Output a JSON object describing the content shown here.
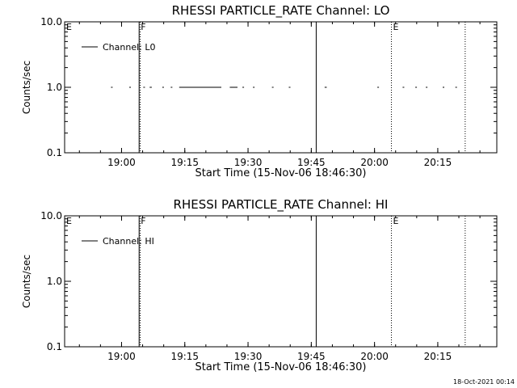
{
  "footer": {
    "timestamp": "18-Oct-2021 00:14"
  },
  "chart_data": [
    {
      "type": "line",
      "title": "RHESSI PARTICLE_RATE Channel: LO",
      "xlabel": "Start Time (15-Nov-06 18:46:30)",
      "ylabel": "Counts/sec",
      "y_scale": "log",
      "ylim": [
        0.1,
        10.0
      ],
      "yticks": [
        {
          "value": 0.1,
          "label": "0.1"
        },
        {
          "value": 1.0,
          "label": "1.0"
        },
        {
          "value": 10.0,
          "label": "10.0"
        }
      ],
      "xlim": [
        "18:46:30",
        "20:29:00"
      ],
      "xticks": [
        "19:00",
        "19:15",
        "19:30",
        "19:45",
        "20:00",
        "20:15"
      ],
      "grid": false,
      "legend": {
        "position": "top-left",
        "entries": [
          "Channel: L0"
        ]
      },
      "events": [
        {
          "time": "18:46:30",
          "label": "E",
          "style": "dotted"
        },
        {
          "time": "19:04:10",
          "label": "F",
          "style": "solid"
        },
        {
          "time": "19:04:25",
          "label": "",
          "style": "dotted"
        },
        {
          "time": "19:46:10",
          "label": "",
          "style": "solid"
        },
        {
          "time": "20:04:00",
          "label": "E",
          "style": "dotted"
        },
        {
          "time": "20:21:30",
          "label": "",
          "style": "dotted"
        }
      ],
      "series": [
        {
          "name": "Channel: L0",
          "segments": [
            [
              "18:57:30",
              "18:57:45"
            ],
            [
              "19:01:50",
              "19:02:05"
            ],
            [
              "19:05:10",
              "19:05:25"
            ],
            [
              "19:06:40",
              "19:07:10"
            ],
            [
              "19:09:40",
              "19:09:55"
            ],
            [
              "19:11:40",
              "19:11:55"
            ],
            [
              "19:13:40",
              "19:23:40"
            ],
            [
              "19:25:40",
              "19:27:30"
            ],
            [
              "19:28:40",
              "19:29:00"
            ],
            [
              "19:31:10",
              "19:31:30"
            ],
            [
              "19:35:40",
              "19:35:55"
            ],
            [
              "19:39:40",
              "19:39:55"
            ],
            [
              "19:48:10",
              "19:48:40"
            ],
            [
              "20:00:40",
              "20:00:55"
            ],
            [
              "20:06:40",
              "20:07:00"
            ],
            [
              "20:09:40",
              "20:10:00"
            ],
            [
              "20:12:10",
              "20:12:25"
            ],
            [
              "20:16:10",
              "20:16:25"
            ],
            [
              "20:19:10",
              "20:19:25"
            ]
          ],
          "value": 1.0
        }
      ]
    },
    {
      "type": "line",
      "title": "RHESSI PARTICLE_RATE Channel: HI",
      "xlabel": "Start Time (15-Nov-06 18:46:30)",
      "ylabel": "Counts/sec",
      "y_scale": "log",
      "ylim": [
        0.1,
        10.0
      ],
      "yticks": [
        {
          "value": 0.1,
          "label": "0.1"
        },
        {
          "value": 1.0,
          "label": "1.0"
        },
        {
          "value": 10.0,
          "label": "10.0"
        }
      ],
      "xlim": [
        "18:46:30",
        "20:29:00"
      ],
      "xticks": [
        "19:00",
        "19:15",
        "19:30",
        "19:45",
        "20:00",
        "20:15"
      ],
      "grid": false,
      "legend": {
        "position": "top-left",
        "entries": [
          "Channel: HI"
        ]
      },
      "events": [
        {
          "time": "18:46:30",
          "label": "E",
          "style": "dotted"
        },
        {
          "time": "19:04:10",
          "label": "F",
          "style": "solid"
        },
        {
          "time": "19:04:25",
          "label": "",
          "style": "dotted"
        },
        {
          "time": "19:46:10",
          "label": "",
          "style": "solid"
        },
        {
          "time": "20:04:00",
          "label": "E",
          "style": "dotted"
        },
        {
          "time": "20:21:30",
          "label": "",
          "style": "dotted"
        }
      ],
      "series": [
        {
          "name": "Channel: HI",
          "segments": [],
          "value": 1.0
        }
      ]
    }
  ]
}
